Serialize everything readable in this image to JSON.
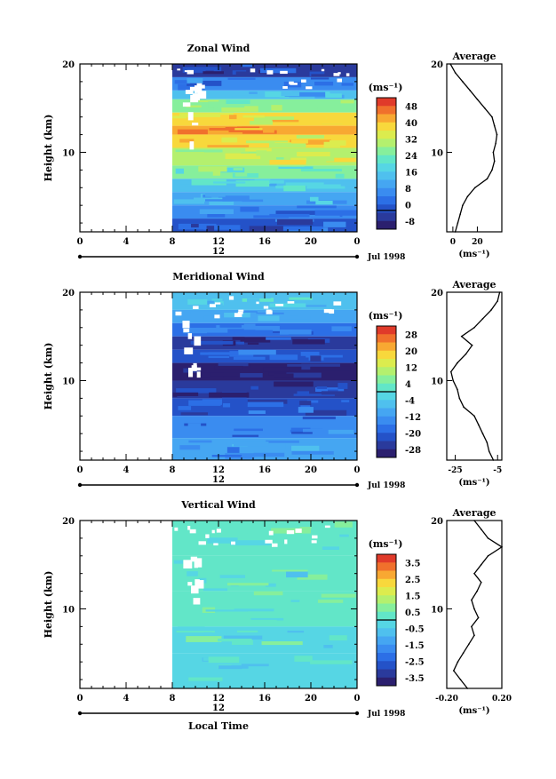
{
  "chart_data": [
    {
      "type": "heatmap",
      "title": "Zonal Wind",
      "ylabel": "Height (km)",
      "xlabel": "",
      "x_ticks": [
        "0",
        "4",
        "8",
        "12",
        "16",
        "20",
        "0"
      ],
      "y_ticks": [
        "20",
        "10"
      ],
      "y_range": [
        1,
        20
      ],
      "x_range": [
        0,
        24
      ],
      "day_label": "12",
      "month_label": "Jul 1998",
      "data_start_hour": 8,
      "colorbar": {
        "unit": "(ms⁻¹)",
        "labels": [
          "48",
          "40",
          "32",
          "24",
          "16",
          "8",
          "0",
          "-8"
        ],
        "values": [
          48,
          40,
          32,
          24,
          16,
          8,
          0,
          -8
        ],
        "contour_at": 0
      },
      "profile_heights": [
        20,
        19,
        18,
        17,
        16,
        15,
        14,
        13,
        12,
        11,
        10,
        9,
        8,
        7,
        6,
        5,
        4,
        3,
        2,
        1
      ],
      "layers": [
        {
          "y0": 18.5,
          "y1": 20,
          "v": -2
        },
        {
          "y0": 17,
          "y1": 18.5,
          "v": 6
        },
        {
          "y0": 16,
          "y1": 17,
          "v": 14
        },
        {
          "y0": 14.5,
          "y1": 16,
          "v": 26
        },
        {
          "y0": 13,
          "y1": 14.5,
          "v": 34
        },
        {
          "y0": 12,
          "y1": 13,
          "v": 40
        },
        {
          "y0": 10.5,
          "y1": 12,
          "v": 34
        },
        {
          "y0": 8.5,
          "y1": 10.5,
          "v": 30
        },
        {
          "y0": 7,
          "y1": 8.5,
          "v": 24
        },
        {
          "y0": 5.5,
          "y1": 7,
          "v": 16
        },
        {
          "y0": 4,
          "y1": 5.5,
          "v": 12
        },
        {
          "y0": 2.5,
          "y1": 4,
          "v": 6
        },
        {
          "y0": 1,
          "y1": 2.5,
          "v": 2
        }
      ],
      "profile": {
        "title": "Average",
        "xlabel": "(ms⁻¹)",
        "x_ticks": [
          "0",
          "20"
        ],
        "x_tick_values": [
          0,
          20
        ],
        "x_range": [
          -5,
          40
        ],
        "values": [
          -2,
          2,
          8,
          14,
          20,
          26,
          32,
          34,
          36,
          35,
          33,
          34,
          32,
          28,
          18,
          12,
          8,
          6,
          4,
          2
        ]
      }
    },
    {
      "type": "heatmap",
      "title": "Meridional Wind",
      "ylabel": "Height (km)",
      "xlabel": "",
      "x_ticks": [
        "0",
        "4",
        "8",
        "12",
        "16",
        "20",
        "0"
      ],
      "y_ticks": [
        "20",
        "10"
      ],
      "y_range": [
        1,
        20
      ],
      "x_range": [
        0,
        24
      ],
      "day_label": "12",
      "month_label": "Jul 1998",
      "data_start_hour": 8,
      "colorbar": {
        "unit": "(ms⁻¹)",
        "labels": [
          "28",
          "20",
          "12",
          "4",
          "-4",
          "-12",
          "-20",
          "-28"
        ],
        "values": [
          28,
          20,
          12,
          4,
          -4,
          -12,
          -20,
          -28
        ],
        "contour_at": 0
      },
      "profile_heights": [
        20,
        19,
        18,
        17,
        16,
        15,
        14,
        13,
        12,
        11,
        10,
        9,
        8,
        7,
        6,
        5,
        4,
        3,
        2,
        1
      ],
      "layers": [
        {
          "y0": 18,
          "y1": 20,
          "v": -4
        },
        {
          "y0": 16.5,
          "y1": 18,
          "v": -10
        },
        {
          "y0": 15,
          "y1": 16.5,
          "v": -16
        },
        {
          "y0": 13.5,
          "y1": 15,
          "v": -22
        },
        {
          "y0": 12,
          "y1": 13.5,
          "v": -18
        },
        {
          "y0": 10,
          "y1": 12,
          "v": -26
        },
        {
          "y0": 8,
          "y1": 10,
          "v": -22
        },
        {
          "y0": 6,
          "y1": 8,
          "v": -18
        },
        {
          "y0": 3.5,
          "y1": 6,
          "v": -14
        },
        {
          "y0": 1,
          "y1": 3.5,
          "v": -10
        }
      ],
      "profile": {
        "title": "Average",
        "xlabel": "(ms⁻¹)",
        "x_ticks": [
          "-25",
          "-5"
        ],
        "x_tick_values": [
          -25,
          -5
        ],
        "x_range": [
          -29,
          -3
        ],
        "values": [
          -4,
          -5,
          -8,
          -12,
          -16,
          -22,
          -17,
          -20,
          -24,
          -27,
          -26,
          -24,
          -23,
          -21,
          -16,
          -14,
          -12,
          -10,
          -9,
          -7
        ]
      }
    },
    {
      "type": "heatmap",
      "title": "Vertical Wind",
      "ylabel": "Height (km)",
      "xlabel": "Local Time",
      "x_ticks": [
        "0",
        "4",
        "8",
        "12",
        "16",
        "20",
        "0"
      ],
      "y_ticks": [
        "20",
        "10"
      ],
      "y_range": [
        1,
        20
      ],
      "x_range": [
        0,
        24
      ],
      "day_label": "12",
      "month_label": "Jul 1998",
      "data_start_hour": 8,
      "colorbar": {
        "unit": "(ms⁻¹)",
        "labels": [
          "3.5",
          "2.5",
          "1.5",
          "0.5",
          "-0.5",
          "-1.5",
          "-2.5",
          "-3.5"
        ],
        "values": [
          3.5,
          2.5,
          1.5,
          0.5,
          -0.5,
          -1.5,
          -2.5,
          -3.5
        ],
        "contour_at": 0
      },
      "profile_heights": [
        20,
        19,
        18,
        17,
        16,
        15,
        14,
        13,
        12,
        11,
        10,
        9,
        8,
        7,
        6,
        5,
        4,
        3,
        2,
        1
      ],
      "layers": [
        {
          "y0": 16,
          "y1": 20,
          "v": 0.3
        },
        {
          "y0": 12,
          "y1": 16,
          "v": 0.1
        },
        {
          "y0": 8,
          "y1": 12,
          "v": 0.2
        },
        {
          "y0": 5,
          "y1": 8,
          "v": -0.1
        },
        {
          "y0": 1,
          "y1": 5,
          "v": -0.3
        }
      ],
      "profile": {
        "title": "Average",
        "xlabel": "(ms⁻¹)",
        "x_ticks": [
          "-0.20",
          "0.20"
        ],
        "x_tick_values": [
          -0.2,
          0.2
        ],
        "x_range": [
          -0.2,
          0.2
        ],
        "values": [
          0.0,
          0.05,
          0.1,
          0.2,
          0.1,
          0.05,
          0.0,
          0.05,
          0.02,
          -0.02,
          0.0,
          0.03,
          -0.02,
          0.0,
          -0.04,
          -0.08,
          -0.12,
          -0.15,
          -0.1,
          -0.05
        ]
      }
    }
  ]
}
